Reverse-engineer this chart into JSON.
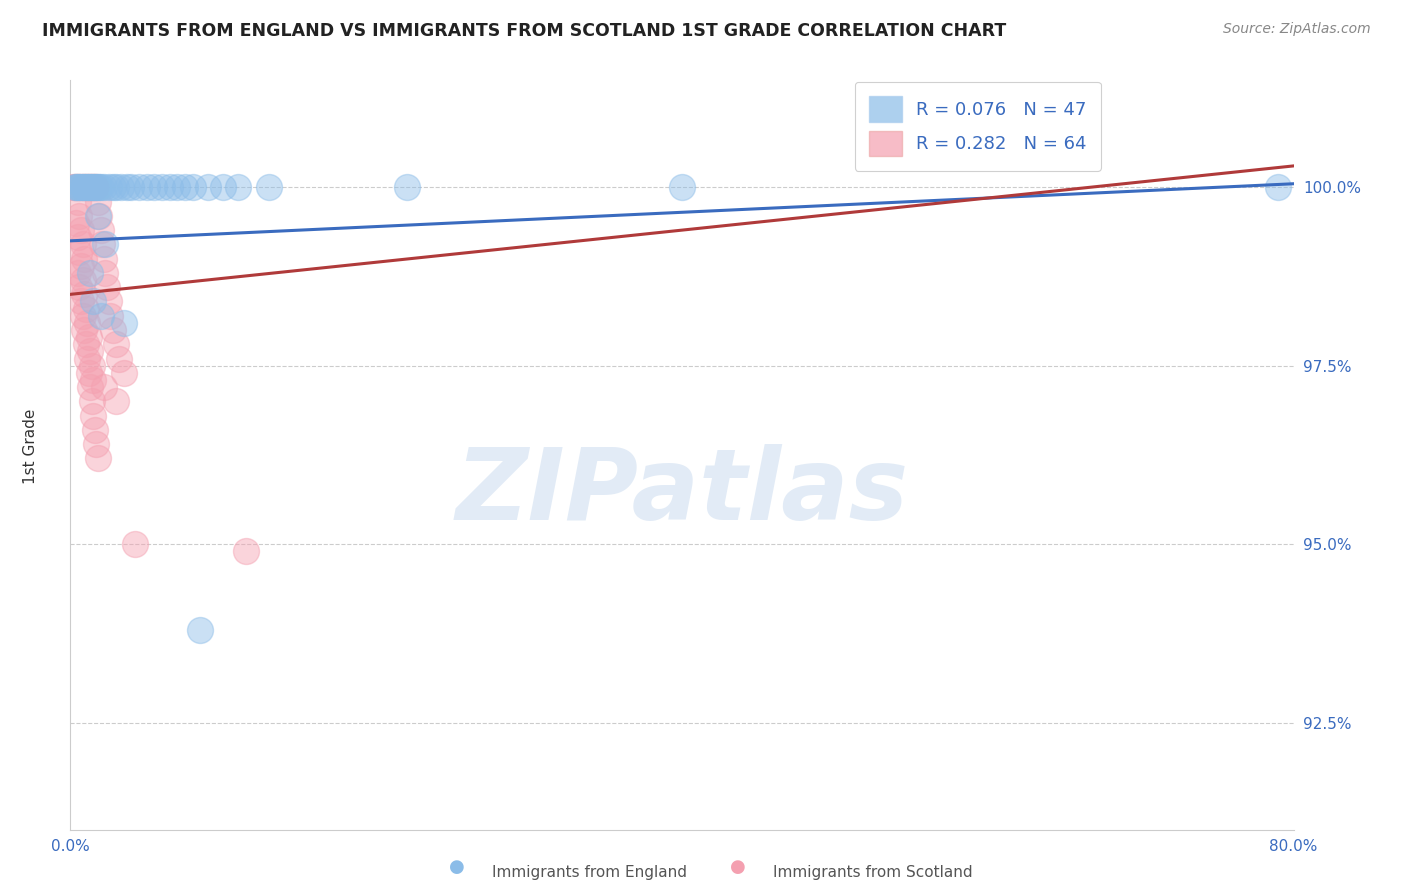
{
  "title": "IMMIGRANTS FROM ENGLAND VS IMMIGRANTS FROM SCOTLAND 1ST GRADE CORRELATION CHART",
  "source_text": "Source: ZipAtlas.com",
  "ylabel": "1st Grade",
  "xlim": [
    0.0,
    80.0
  ],
  "ylim": [
    91.0,
    101.5
  ],
  "yticks": [
    92.5,
    95.0,
    97.5,
    100.0
  ],
  "ytick_labels": [
    "92.5%",
    "95.0%",
    "97.5%",
    "100.0%"
  ],
  "england_color": "#8bbce8",
  "scotland_color": "#f4a0b0",
  "england_R": 0.076,
  "england_N": 47,
  "scotland_R": 0.282,
  "scotland_N": 64,
  "trend_england_color": "#3a6bbf",
  "trend_scotland_color": "#b03a3a",
  "watermark_text": "ZIPatlas",
  "eng_trend_x0": 0,
  "eng_trend_y0": 99.25,
  "eng_trend_x1": 80,
  "eng_trend_y1": 100.05,
  "scot_trend_x0": 0,
  "scot_trend_y0": 98.5,
  "scot_trend_x1": 80,
  "scot_trend_y1": 100.3,
  "eng_x": [
    0.3,
    0.4,
    0.5,
    0.6,
    0.7,
    0.8,
    0.9,
    1.0,
    1.1,
    1.2,
    1.3,
    1.4,
    1.5,
    1.6,
    1.7,
    1.8,
    1.9,
    2.0,
    2.2,
    2.5,
    2.8,
    3.0,
    3.3,
    3.7,
    4.0,
    4.5,
    5.0,
    5.5,
    6.0,
    6.5,
    7.0,
    7.5,
    8.0,
    9.0,
    10.0,
    11.0,
    13.0,
    22.0,
    40.0,
    79.0,
    2.3,
    1.3,
    1.5,
    1.8,
    2.0,
    3.5,
    8.5
  ],
  "eng_y": [
    100.0,
    100.0,
    100.0,
    100.0,
    100.0,
    100.0,
    100.0,
    100.0,
    100.0,
    100.0,
    100.0,
    100.0,
    100.0,
    100.0,
    100.0,
    100.0,
    100.0,
    100.0,
    100.0,
    100.0,
    100.0,
    100.0,
    100.0,
    100.0,
    100.0,
    100.0,
    100.0,
    100.0,
    100.0,
    100.0,
    100.0,
    100.0,
    100.0,
    100.0,
    100.0,
    100.0,
    100.0,
    100.0,
    100.0,
    100.0,
    99.2,
    98.8,
    98.4,
    99.6,
    98.2,
    98.1,
    93.8
  ],
  "scot_x": [
    0.2,
    0.3,
    0.4,
    0.5,
    0.6,
    0.7,
    0.8,
    0.9,
    1.0,
    1.1,
    1.2,
    1.3,
    1.4,
    1.5,
    1.6,
    1.7,
    1.8,
    1.9,
    2.0,
    2.1,
    2.2,
    2.3,
    2.4,
    2.5,
    2.6,
    2.8,
    3.0,
    3.2,
    3.5,
    0.4,
    0.5,
    0.6,
    0.7,
    0.8,
    0.9,
    1.0,
    1.1,
    1.2,
    1.3,
    1.4,
    1.5,
    0.5,
    0.6,
    0.7,
    0.8,
    0.9,
    0.5,
    0.6,
    0.7,
    0.8,
    0.9,
    1.0,
    1.1,
    1.2,
    1.3,
    1.4,
    1.5,
    1.6,
    1.7,
    1.8,
    2.2,
    3.0,
    4.2,
    11.5
  ],
  "scot_y": [
    100.0,
    100.0,
    100.0,
    100.0,
    100.0,
    100.0,
    100.0,
    100.0,
    100.0,
    100.0,
    100.0,
    100.0,
    100.0,
    100.0,
    100.0,
    100.0,
    99.8,
    99.6,
    99.4,
    99.2,
    99.0,
    98.8,
    98.6,
    98.4,
    98.2,
    98.0,
    97.8,
    97.6,
    97.4,
    99.5,
    99.3,
    99.1,
    98.9,
    98.7,
    98.5,
    98.3,
    98.1,
    97.9,
    97.7,
    97.5,
    97.3,
    99.8,
    99.6,
    99.4,
    99.2,
    99.0,
    98.8,
    98.6,
    98.4,
    98.2,
    98.0,
    97.8,
    97.6,
    97.4,
    97.2,
    97.0,
    96.8,
    96.6,
    96.4,
    96.2,
    97.2,
    97.0,
    95.0,
    94.9
  ]
}
